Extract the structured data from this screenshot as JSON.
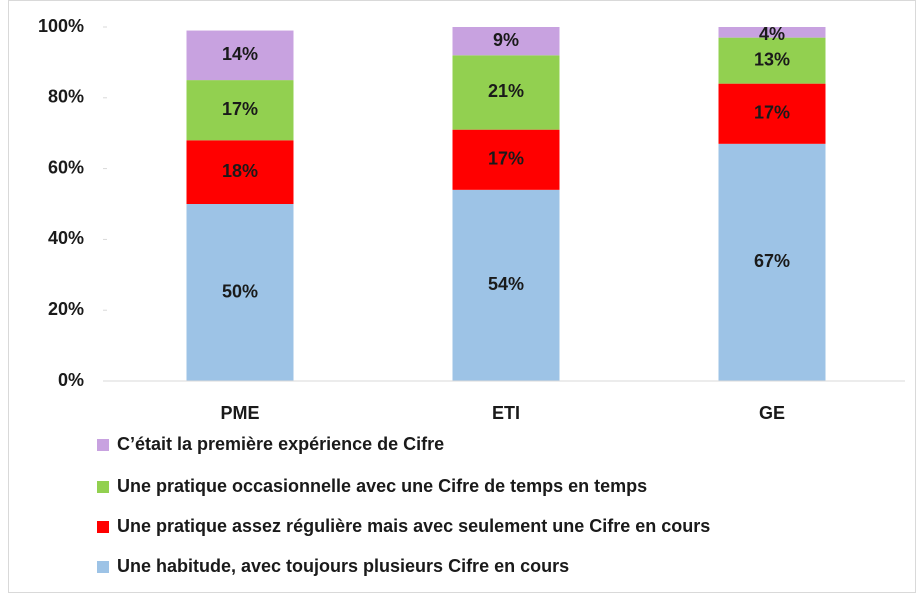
{
  "chart_data": {
    "type": "stacked_bar",
    "categories": [
      "PME",
      "ETI",
      "GE"
    ],
    "series": [
      {
        "name": "Une habitude, avec toujours plusieurs Cifre en cours",
        "color": "#9dc3e6",
        "values": [
          50,
          54,
          67
        ],
        "value_labels": [
          "50%",
          "54%",
          "67%"
        ]
      },
      {
        "name": "Une pratique assez régulière mais avec seulement une Cifre en cours",
        "color": "#ff0000",
        "values": [
          18,
          17,
          17
        ],
        "value_labels": [
          "18%",
          "17%",
          "17%"
        ]
      },
      {
        "name": "Une pratique occasionnelle avec une Cifre de temps en temps",
        "color": "#92d050",
        "values": [
          17,
          21,
          13
        ],
        "value_labels": [
          "17%",
          "21%",
          "13%"
        ]
      },
      {
        "name": "C’était la première expérience de Cifre",
        "color": "#c8a2e0",
        "values": [
          14,
          9,
          4
        ],
        "value_labels": [
          "14%",
          "9%",
          "4%"
        ]
      }
    ],
    "ylim": [
      0,
      100
    ],
    "yticks": [
      {
        "value": 0,
        "label": "0%"
      },
      {
        "value": 20,
        "label": "20%"
      },
      {
        "value": 40,
        "label": "40%"
      },
      {
        "value": 60,
        "label": "60%"
      },
      {
        "value": 80,
        "label": "80%"
      },
      {
        "value": 100,
        "label": "100%"
      }
    ],
    "legend": "bottom"
  }
}
